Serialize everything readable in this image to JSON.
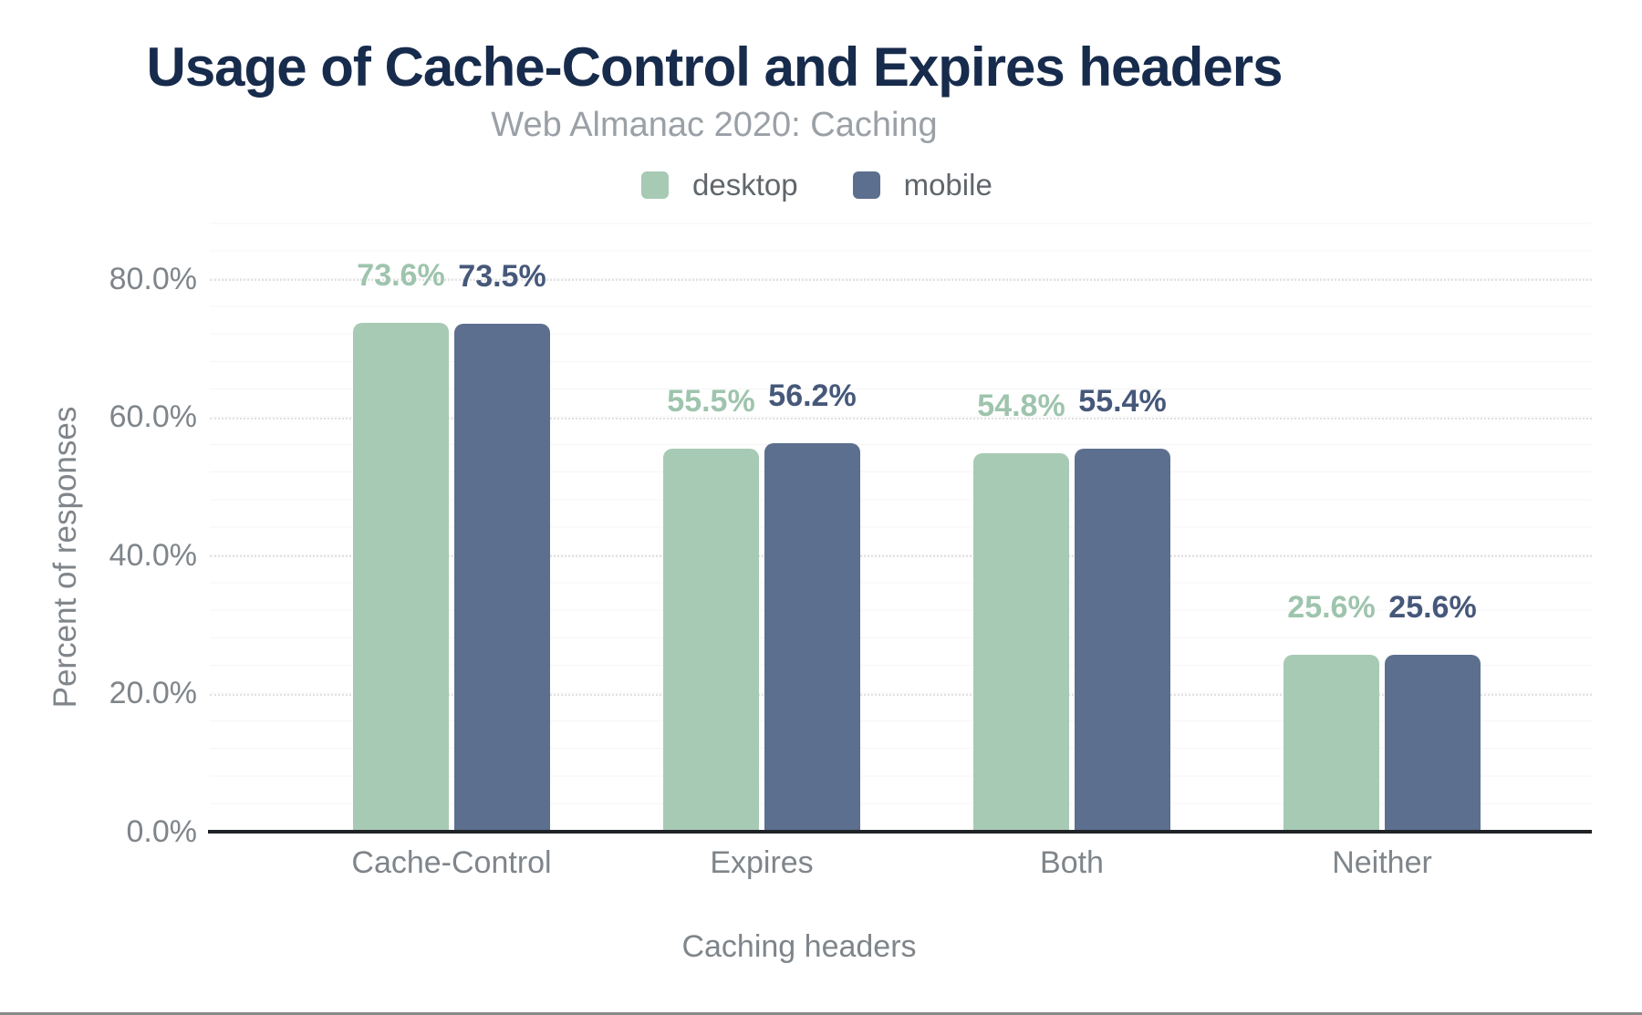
{
  "chart_data": {
    "type": "bar",
    "title": "Usage of Cache-Control and Expires headers",
    "subtitle": "Web Almanac 2020: Caching",
    "categories": [
      "Cache-Control",
      "Expires",
      "Both",
      "Neither"
    ],
    "series": [
      {
        "name": "desktop",
        "color": "#a7cab4",
        "label_color": "#9ec4ad",
        "values": [
          73.6,
          55.5,
          54.8,
          25.6
        ]
      },
      {
        "name": "mobile",
        "color": "#5c6f8e",
        "label_color": "#46587a",
        "values": [
          73.5,
          56.2,
          55.4,
          25.6
        ]
      }
    ],
    "xlabel": "Caching headers",
    "ylabel": "Percent of responses",
    "ylim": [
      0,
      80
    ],
    "ytick_step": 20,
    "ytick_labels": [
      "0.0%",
      "20.0%",
      "40.0%",
      "60.0%",
      "80.0%"
    ],
    "value_suffix": "%",
    "value_decimals": 1,
    "legend_position": "top",
    "grid": {
      "major": "dotted, every 20%",
      "minor": "solid faint, every 4%"
    },
    "colors": {
      "title": "#172b4c",
      "subtitle": "#9aa0a6",
      "axis_text": "#7f858a",
      "legend_text": "#60666b",
      "axis_line": "#1f2227",
      "major_grid": "#e0e0e0",
      "minor_grid": "#f5f5f5",
      "bottom_border": "#8a8a8a",
      "background": "#ffffff"
    }
  }
}
